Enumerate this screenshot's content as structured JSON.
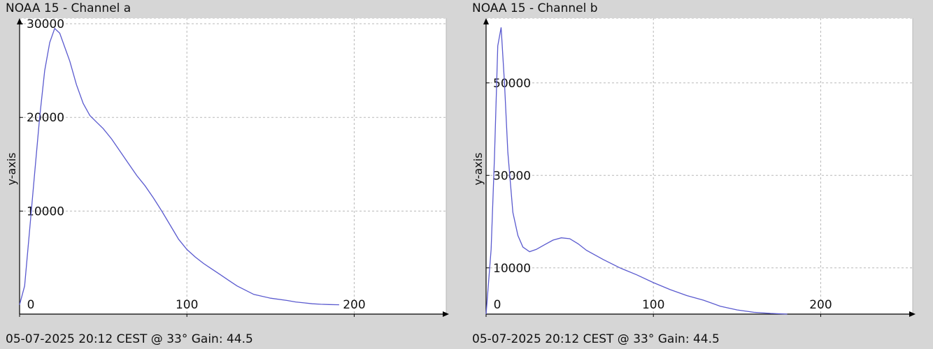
{
  "panels": [
    {
      "title": "NOAA 15 - Channel a",
      "footer": "05-07-2025 20:12 CEST @ 33° Gain: 44.5"
    },
    {
      "title": "NOAA 15 - Channel b",
      "footer": "05-07-2025 20:12 CEST @ 33° Gain: 44.5"
    }
  ],
  "chart_data": [
    {
      "type": "line",
      "title": "NOAA 15 - Channel a",
      "xlabel": "",
      "ylabel": "y-axis",
      "xlim": [
        0,
        255
      ],
      "ylim": [
        -1000,
        30600
      ],
      "xticks": [
        0,
        100,
        200
      ],
      "yticks": [
        10000,
        20000,
        30000
      ],
      "grid": true,
      "colors": {
        "line": "#5a5acf",
        "grid": "#b8b8b8",
        "background": "#ffffff"
      },
      "series": [
        {
          "x": [
            0,
            3,
            6,
            9,
            12,
            15,
            18,
            21,
            24,
            27,
            30,
            34,
            38,
            42,
            46,
            50,
            55,
            60,
            65,
            70,
            75,
            80,
            85,
            90,
            95,
            100,
            105,
            110,
            115,
            120,
            125,
            130,
            140,
            150,
            160,
            165,
            170,
            175,
            180,
            185,
            191
          ],
          "y": [
            0,
            2000,
            8000,
            14000,
            20000,
            25000,
            28000,
            29500,
            29000,
            27500,
            26000,
            23500,
            21500,
            20200,
            19500,
            18800,
            17700,
            16400,
            15100,
            13800,
            12700,
            11400,
            10000,
            8500,
            7000,
            5900,
            5100,
            4400,
            3800,
            3200,
            2600,
            2000,
            1100,
            700,
            450,
            300,
            200,
            100,
            50,
            20,
            0
          ]
        }
      ]
    },
    {
      "type": "line",
      "title": "NOAA 15 - Channel b",
      "xlabel": "",
      "ylabel": "y-axis",
      "xlim": [
        0,
        255
      ],
      "ylim": [
        0,
        64000
      ],
      "xticks": [
        0,
        100,
        200
      ],
      "yticks": [
        10000,
        30000,
        50000
      ],
      "grid": true,
      "colors": {
        "line": "#5a5acf",
        "grid": "#b8b8b8",
        "background": "#ffffff"
      },
      "series": [
        {
          "x": [
            0,
            3,
            5,
            7,
            9,
            11,
            13,
            16,
            19,
            22,
            26,
            30,
            35,
            40,
            45,
            50,
            55,
            60,
            70,
            80,
            90,
            100,
            110,
            120,
            130,
            140,
            150,
            160,
            170,
            180
          ],
          "y": [
            0,
            14000,
            34000,
            58000,
            62000,
            50000,
            35000,
            22000,
            17000,
            14500,
            13500,
            14000,
            15000,
            16000,
            16500,
            16300,
            15200,
            13800,
            11800,
            10000,
            8500,
            6800,
            5300,
            4000,
            3000,
            1700,
            900,
            400,
            150,
            0
          ]
        }
      ]
    }
  ]
}
